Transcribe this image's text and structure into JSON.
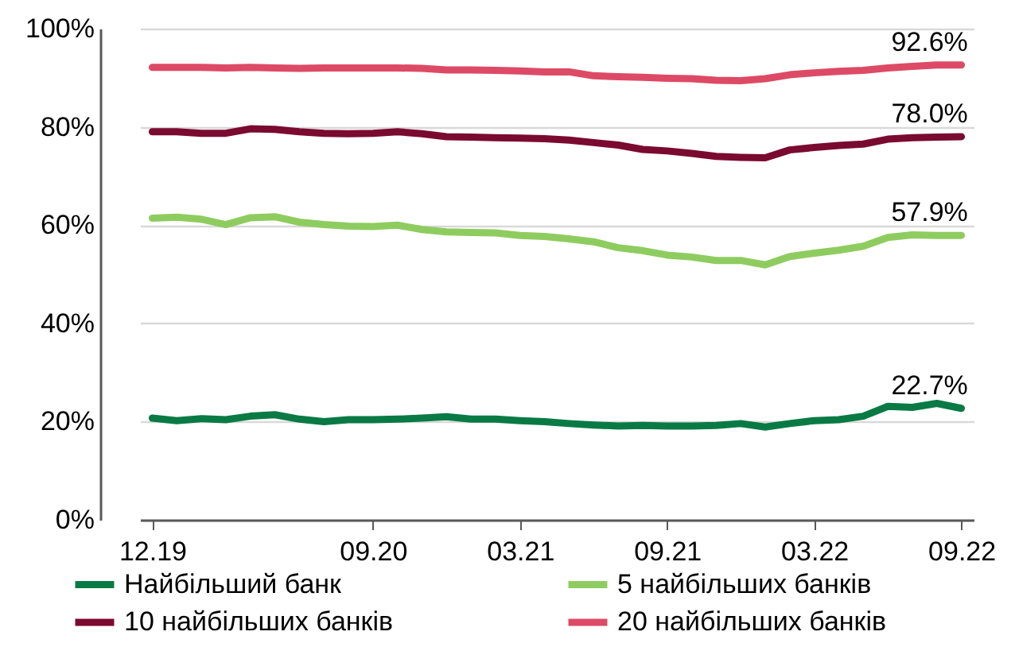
{
  "chart_data": {
    "type": "line",
    "categories": [
      "12.19",
      null,
      null,
      null,
      null,
      null,
      null,
      null,
      null,
      "09.20",
      null,
      null,
      null,
      null,
      null,
      "03.21",
      null,
      null,
      null,
      null,
      null,
      "09.21",
      null,
      null,
      null,
      null,
      null,
      "03.22",
      null,
      null,
      null,
      null,
      null,
      "09.22"
    ],
    "series": [
      {
        "name": "Найбільший банк",
        "color": "#0a7a45",
        "values": [
          20.7,
          20.2,
          20.6,
          20.4,
          21.1,
          21.4,
          20.5,
          20.0,
          20.4,
          20.4,
          20.5,
          20.7,
          21.0,
          20.5,
          20.5,
          20.2,
          20.0,
          19.6,
          19.3,
          19.1,
          19.2,
          19.1,
          19.1,
          19.2,
          19.6,
          18.9,
          19.6,
          20.2,
          20.4,
          21.1,
          23.1,
          22.9,
          23.7,
          22.7
        ],
        "value_labels": [
          null,
          null,
          null,
          null,
          null,
          null,
          null,
          null,
          null,
          null,
          null,
          null,
          null,
          null,
          null,
          null,
          null,
          null,
          null,
          null,
          null,
          null,
          null,
          null,
          null,
          null,
          null,
          null,
          null,
          null,
          null,
          null,
          null,
          "22.7%"
        ]
      },
      {
        "name": "5 найбільших банків",
        "color": "#8fcc60",
        "values": [
          61.4,
          61.6,
          61.2,
          60.1,
          61.5,
          61.7,
          60.6,
          60.1,
          59.8,
          59.7,
          60.0,
          59.1,
          58.6,
          58.5,
          58.4,
          57.9,
          57.7,
          57.2,
          56.6,
          55.4,
          54.8,
          53.9,
          53.5,
          52.8,
          52.8,
          51.9,
          53.6,
          54.3,
          54.9,
          55.7,
          57.5,
          58.0,
          57.9,
          57.9
        ],
        "value_labels": [
          null,
          null,
          null,
          null,
          null,
          null,
          null,
          null,
          null,
          null,
          null,
          null,
          null,
          null,
          null,
          null,
          null,
          null,
          null,
          null,
          null,
          null,
          null,
          null,
          null,
          null,
          null,
          null,
          null,
          null,
          null,
          null,
          null,
          "57.9%"
        ]
      },
      {
        "name": "10 найбільших банків",
        "color": "#7a0a30",
        "values": [
          79.0,
          79.0,
          78.7,
          78.7,
          79.6,
          79.5,
          79.0,
          78.7,
          78.6,
          78.7,
          79.0,
          78.6,
          78.0,
          77.9,
          77.8,
          77.7,
          77.6,
          77.3,
          76.8,
          76.3,
          75.4,
          75.1,
          74.6,
          74.0,
          73.8,
          73.7,
          75.3,
          75.8,
          76.2,
          76.5,
          77.5,
          77.8,
          77.9,
          78.0
        ],
        "value_labels": [
          null,
          null,
          null,
          null,
          null,
          null,
          null,
          null,
          null,
          null,
          null,
          null,
          null,
          null,
          null,
          null,
          null,
          null,
          null,
          null,
          null,
          null,
          null,
          null,
          null,
          null,
          null,
          null,
          null,
          null,
          null,
          null,
          null,
          "78.0%"
        ]
      },
      {
        "name": "20 найбільших банків",
        "color": "#dd4a66",
        "values": [
          92.1,
          92.1,
          92.1,
          92.0,
          92.1,
          92.0,
          91.9,
          92.0,
          92.0,
          92.0,
          92.0,
          91.9,
          91.6,
          91.6,
          91.5,
          91.4,
          91.2,
          91.2,
          90.4,
          90.2,
          90.1,
          89.9,
          89.8,
          89.5,
          89.4,
          89.8,
          90.6,
          91.0,
          91.3,
          91.5,
          92.0,
          92.3,
          92.6,
          92.6
        ],
        "value_labels": [
          null,
          null,
          null,
          null,
          null,
          null,
          null,
          null,
          null,
          null,
          null,
          null,
          null,
          null,
          null,
          null,
          null,
          null,
          null,
          null,
          null,
          null,
          null,
          null,
          null,
          null,
          null,
          null,
          null,
          null,
          null,
          null,
          null,
          "92.6%"
        ]
      }
    ],
    "ylim": [
      0,
      100
    ],
    "yticks": [
      {
        "value": 0,
        "label": "0%"
      },
      {
        "value": 20,
        "label": "20%"
      },
      {
        "value": 40,
        "label": "40%"
      },
      {
        "value": 60,
        "label": "60%"
      },
      {
        "value": 80,
        "label": "80%"
      },
      {
        "value": 100,
        "label": "100%"
      }
    ],
    "grid": "y",
    "legend": "bottom",
    "marker": "none",
    "line_style": "solid"
  }
}
